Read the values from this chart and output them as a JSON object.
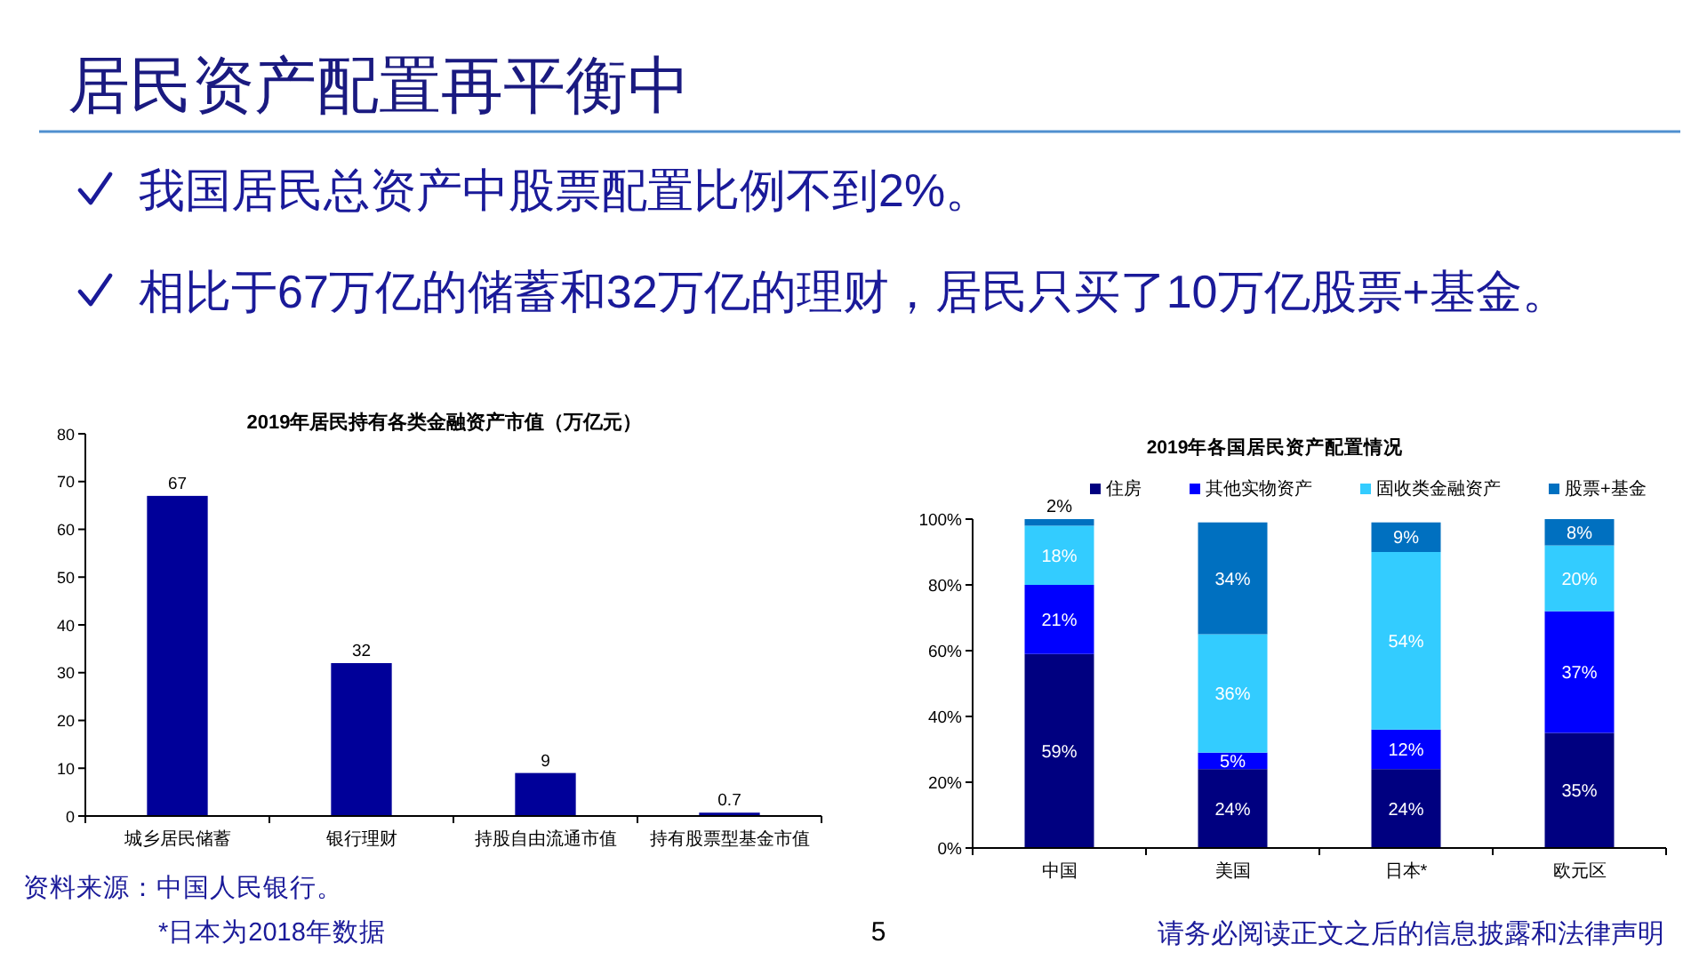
{
  "chart_data": [
    {
      "type": "other",
      "title": "居民资产配置再平衡中",
      "annotations": [
        "我国居民总资产中股票配置比例不到2%。",
        "相比于67万亿的储蓄和32万亿的理财，居民只买了10万亿股票+基金。",
        "资料来源：中国人民银行。",
        "*日本为2018年数据",
        "5",
        "请务必阅读正文之后的信息披露和法律声明"
      ]
    },
    {
      "type": "bar",
      "title": "2019年居民持有各类金融资产市值（万亿元）",
      "categories": [
        "城乡居民储蓄",
        "银行理财",
        "持股自由流通市值",
        "持有股票型基金市值"
      ],
      "values": [
        67,
        32,
        9,
        0.7
      ],
      "color": "#000099",
      "data_labels": true,
      "ylim": [
        0,
        80
      ],
      "yticks": [
        0,
        10,
        20,
        30,
        40,
        50,
        60,
        70,
        80
      ]
    },
    {
      "type": "bar",
      "stacked": true,
      "title": "2019年各国居民资产配置情况",
      "categories": [
        "中国",
        "美国",
        "日本*",
        "欧元区"
      ],
      "series": [
        {
          "name": "住房",
          "color": "#000080",
          "values": [
            59,
            24,
            24,
            35
          ],
          "value_labels": [
            "59%",
            "24%",
            "24%",
            "35%"
          ]
        },
        {
          "name": "其他实物资产",
          "color": "#0000ff",
          "values": [
            21,
            5,
            12,
            37
          ],
          "value_labels": [
            "21%",
            "5%",
            "12%",
            "37%"
          ]
        },
        {
          "name": "固收类金融资产",
          "color": "#33ccff",
          "values": [
            18,
            36,
            54,
            20
          ],
          "value_labels": [
            "18%",
            "36%",
            "54%",
            "20%"
          ]
        },
        {
          "name": "股票+基金",
          "color": "#0070c0",
          "values": [
            2,
            34,
            9,
            8
          ],
          "value_labels": [
            "2%",
            "34%",
            "9%",
            "8%"
          ]
        }
      ],
      "ylim": [
        0,
        100
      ],
      "yticks": [
        {
          "value": 0,
          "label": "0%"
        },
        {
          "value": 20,
          "label": "20%"
        },
        {
          "value": 40,
          "label": "40%"
        },
        {
          "value": 60,
          "label": "60%"
        },
        {
          "value": 80,
          "label": "80%"
        },
        {
          "value": 100,
          "label": "100%"
        }
      ],
      "legend": "top"
    }
  ]
}
